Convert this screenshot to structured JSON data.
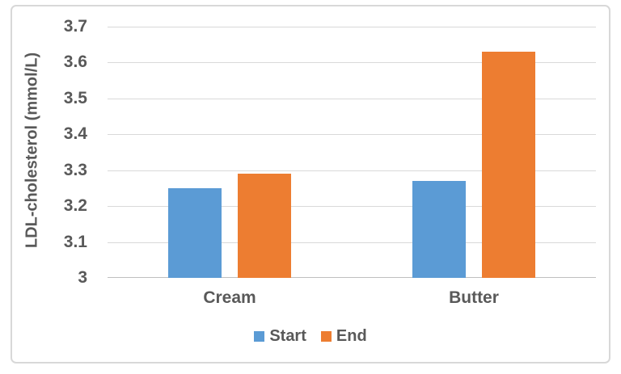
{
  "chart_data": {
    "type": "bar",
    "title": "",
    "categories": [
      "Cream",
      "Butter"
    ],
    "series": [
      {
        "name": "Start",
        "color": "#5B9BD5",
        "values": [
          3.25,
          3.27
        ]
      },
      {
        "name": "End",
        "color": "#ED7D31",
        "values": [
          3.29,
          3.63
        ]
      }
    ],
    "xlabel": "",
    "ylabel": "LDL-cholesterol (mmol/L)",
    "ylim": [
      3,
      3.7
    ],
    "ytick_step": 0.1,
    "ytick_labels": [
      "3.7",
      "3.6",
      "3.5",
      "3.4",
      "3.3",
      "3.2",
      "3.1",
      "3"
    ],
    "grid": true,
    "legend_position": "bottom"
  },
  "colors": {
    "text": "#595959",
    "gridline": "#D9D9D9",
    "axis_line": "#BFBFBF",
    "frame_border": "#D8D8D8",
    "background": "#FFFFFF"
  }
}
